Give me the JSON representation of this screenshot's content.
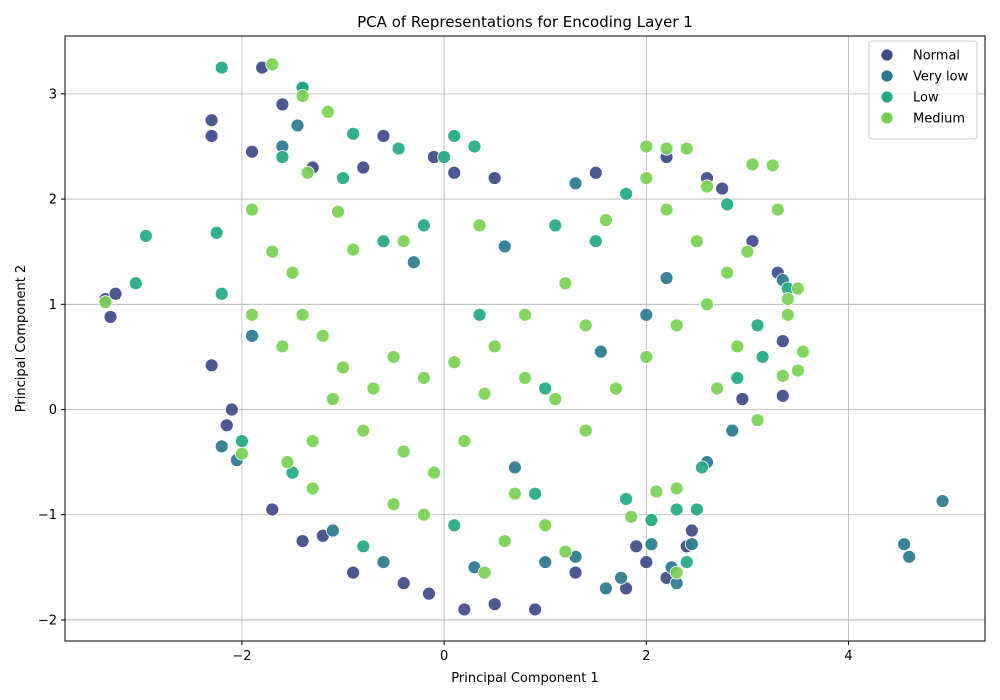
{
  "chart_data": {
    "type": "scatter",
    "title": "PCA of Representations for Encoding Layer 1",
    "xlabel": "Principal Component 1",
    "ylabel": "Principal Component 2",
    "xlim": [
      -3.75,
      5.35
    ],
    "ylim": [
      -2.2,
      3.55
    ],
    "xticks": [
      -2,
      0,
      2,
      4
    ],
    "yticks": [
      -2,
      -1,
      0,
      1,
      2,
      3
    ],
    "xtick_labels": [
      "−2",
      "0",
      "2",
      "4"
    ],
    "ytick_labels": [
      "−2",
      "−1",
      "0",
      "1",
      "2",
      "3"
    ],
    "grid": true,
    "legend_position": "upper right",
    "series": [
      {
        "name": "Normal",
        "color": "#3e4989",
        "points": [
          [
            -3.35,
            1.05
          ],
          [
            -3.25,
            1.1
          ],
          [
            -3.3,
            0.88
          ],
          [
            -2.3,
            2.75
          ],
          [
            -2.3,
            2.6
          ],
          [
            -1.8,
            3.25
          ],
          [
            -1.6,
            2.9
          ],
          [
            -1.9,
            2.45
          ],
          [
            -2.3,
            0.42
          ],
          [
            -2.15,
            -0.15
          ],
          [
            -1.7,
            -0.95
          ],
          [
            -1.4,
            -1.25
          ],
          [
            -1.2,
            -1.2
          ],
          [
            -0.9,
            -1.55
          ],
          [
            -0.4,
            -1.65
          ],
          [
            -0.15,
            -1.75
          ],
          [
            0.2,
            -1.9
          ],
          [
            0.5,
            -1.85
          ],
          [
            0.9,
            -1.9
          ],
          [
            1.3,
            -1.55
          ],
          [
            1.8,
            -1.7
          ],
          [
            2.0,
            -1.45
          ],
          [
            2.2,
            -1.6
          ],
          [
            2.4,
            -1.3
          ],
          [
            2.45,
            -1.15
          ],
          [
            2.2,
            2.4
          ],
          [
            1.5,
            2.25
          ],
          [
            0.5,
            2.2
          ],
          [
            -0.6,
            2.6
          ],
          [
            -0.1,
            2.4
          ],
          [
            0.1,
            2.25
          ],
          [
            2.75,
            2.1
          ],
          [
            3.3,
            1.3
          ],
          [
            3.35,
            0.65
          ],
          [
            3.35,
            0.13
          ],
          [
            -0.8,
            2.3
          ],
          [
            -1.3,
            2.3
          ],
          [
            2.6,
            2.2
          ],
          [
            3.05,
            1.6
          ],
          [
            2.95,
            0.1
          ],
          [
            1.9,
            -1.3
          ],
          [
            -2.1,
            0.0
          ]
        ]
      },
      {
        "name": "Very low",
        "color": "#2a788e",
        "points": [
          [
            4.93,
            -0.87
          ],
          [
            4.55,
            -1.28
          ],
          [
            4.6,
            -1.4
          ],
          [
            -2.05,
            -0.48
          ],
          [
            -2.2,
            -0.35
          ],
          [
            1.6,
            -1.7
          ],
          [
            1.75,
            -1.6
          ],
          [
            2.05,
            -1.28
          ],
          [
            2.25,
            -1.5
          ],
          [
            2.45,
            -1.28
          ],
          [
            2.3,
            -1.65
          ],
          [
            3.35,
            1.23
          ],
          [
            -1.4,
            3.05
          ],
          [
            -1.1,
            -1.15
          ],
          [
            -0.6,
            -1.45
          ],
          [
            0.3,
            -1.5
          ],
          [
            1.0,
            -1.45
          ],
          [
            1.3,
            -1.4
          ],
          [
            2.6,
            -0.5
          ],
          [
            2.85,
            -0.2
          ],
          [
            -1.6,
            2.5
          ],
          [
            -1.45,
            2.7
          ],
          [
            1.3,
            2.15
          ],
          [
            0.6,
            1.55
          ],
          [
            -0.3,
            1.4
          ],
          [
            2.0,
            0.9
          ],
          [
            2.2,
            1.25
          ],
          [
            -1.9,
            0.7
          ],
          [
            1.55,
            0.55
          ],
          [
            0.7,
            -0.55
          ]
        ]
      },
      {
        "name": "Low",
        "color": "#22a884",
        "points": [
          [
            -2.95,
            1.65
          ],
          [
            -3.05,
            1.2
          ],
          [
            -2.2,
            3.25
          ],
          [
            -2.2,
            1.1
          ],
          [
            -2.25,
            1.68
          ],
          [
            -0.9,
            2.62
          ],
          [
            -0.45,
            2.48
          ],
          [
            0.3,
            2.5
          ],
          [
            0.1,
            2.6
          ],
          [
            -1.4,
            3.06
          ],
          [
            2.05,
            -1.05
          ],
          [
            2.3,
            -0.95
          ],
          [
            2.55,
            -0.55
          ],
          [
            2.4,
            -1.45
          ],
          [
            2.5,
            -0.95
          ],
          [
            3.15,
            0.5
          ],
          [
            3.4,
            1.15
          ],
          [
            -1.0,
            2.2
          ],
          [
            -1.6,
            2.4
          ],
          [
            0.0,
            2.4
          ],
          [
            -0.2,
            1.75
          ],
          [
            1.1,
            1.75
          ],
          [
            1.5,
            1.6
          ],
          [
            2.8,
            1.95
          ],
          [
            3.1,
            0.8
          ],
          [
            -2.0,
            -0.3
          ],
          [
            -1.5,
            -0.6
          ],
          [
            -0.8,
            -1.3
          ],
          [
            0.1,
            -1.1
          ],
          [
            0.9,
            -0.8
          ],
          [
            1.8,
            -0.85
          ],
          [
            2.9,
            0.3
          ],
          [
            1.8,
            2.05
          ],
          [
            -0.6,
            1.6
          ],
          [
            0.35,
            0.9
          ],
          [
            1.0,
            0.2
          ]
        ]
      },
      {
        "name": "Medium",
        "color": "#7ad151",
        "points": [
          [
            -3.35,
            1.02
          ],
          [
            -1.7,
            3.28
          ],
          [
            -1.4,
            2.98
          ],
          [
            -1.15,
            2.83
          ],
          [
            -1.35,
            2.25
          ],
          [
            -1.05,
            1.88
          ],
          [
            -0.9,
            1.52
          ],
          [
            -0.4,
            1.6
          ],
          [
            0.35,
            1.75
          ],
          [
            2.0,
            2.5
          ],
          [
            2.2,
            2.48
          ],
          [
            2.4,
            2.48
          ],
          [
            2.6,
            2.12
          ],
          [
            3.05,
            2.33
          ],
          [
            3.25,
            2.32
          ],
          [
            3.3,
            1.9
          ],
          [
            3.4,
            1.05
          ],
          [
            3.5,
            1.15
          ],
          [
            3.55,
            0.55
          ],
          [
            3.5,
            0.37
          ],
          [
            3.4,
            0.9
          ],
          [
            3.35,
            0.32
          ],
          [
            3.1,
            -0.1
          ],
          [
            1.85,
            -1.02
          ],
          [
            2.1,
            -0.78
          ],
          [
            2.3,
            -0.75
          ],
          [
            2.3,
            -1.55
          ],
          [
            1.2,
            -1.35
          ],
          [
            0.4,
            -1.55
          ],
          [
            -0.5,
            -0.9
          ],
          [
            -1.3,
            -0.75
          ],
          [
            -1.55,
            -0.5
          ],
          [
            -2.0,
            -0.42
          ],
          [
            -1.9,
            1.9
          ],
          [
            -1.7,
            1.5
          ],
          [
            -1.5,
            1.3
          ],
          [
            -1.9,
            0.9
          ],
          [
            -1.6,
            0.6
          ],
          [
            -1.4,
            0.9
          ],
          [
            -1.2,
            0.7
          ],
          [
            -1.0,
            0.4
          ],
          [
            -0.7,
            0.2
          ],
          [
            -0.5,
            0.5
          ],
          [
            -0.2,
            0.3
          ],
          [
            0.1,
            0.45
          ],
          [
            0.4,
            0.15
          ],
          [
            0.8,
            0.3
          ],
          [
            1.1,
            0.1
          ],
          [
            1.4,
            -0.2
          ],
          [
            1.7,
            0.2
          ],
          [
            2.0,
            0.5
          ],
          [
            2.3,
            0.8
          ],
          [
            2.6,
            1.0
          ],
          [
            2.8,
            1.3
          ],
          [
            2.9,
            0.6
          ],
          [
            2.5,
            1.6
          ],
          [
            2.2,
            1.9
          ],
          [
            2.0,
            2.2
          ],
          [
            1.6,
            1.8
          ],
          [
            1.2,
            1.2
          ],
          [
            0.8,
            0.9
          ],
          [
            0.5,
            0.6
          ],
          [
            0.2,
            -0.3
          ],
          [
            -0.1,
            -0.6
          ],
          [
            -0.4,
            -0.4
          ],
          [
            -0.8,
            -0.2
          ],
          [
            -1.1,
            0.1
          ],
          [
            -1.3,
            -0.3
          ],
          [
            0.7,
            -0.8
          ],
          [
            1.0,
            -1.1
          ],
          [
            0.6,
            -1.25
          ],
          [
            -0.2,
            -1.0
          ],
          [
            1.4,
            0.8
          ],
          [
            2.7,
            0.2
          ],
          [
            3.0,
            1.5
          ]
        ]
      }
    ]
  }
}
